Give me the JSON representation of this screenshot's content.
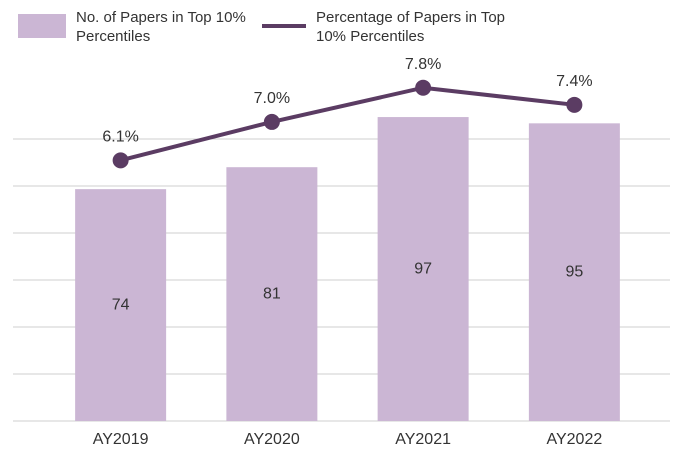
{
  "chart_data": {
    "type": "bar",
    "categories": [
      "AY2019",
      "AY2020",
      "AY2021",
      "AY2022"
    ],
    "series": [
      {
        "name": "No. of Papers in Top 10% Percentiles",
        "type": "bar",
        "color": "#cbb6d4",
        "values": [
          74,
          81,
          97,
          95
        ]
      },
      {
        "name": "Percentage of Papers in Top 10% Percentiles",
        "type": "line",
        "axis": "y2",
        "color": "#5b3c63",
        "values": [
          6.1,
          7.0,
          7.8,
          7.4
        ],
        "value_labels": [
          "6.1%",
          "7.0%",
          "7.8%",
          "7.4%"
        ]
      }
    ],
    "ylim": [
      0,
      105
    ],
    "yticks": [
      0,
      15,
      30,
      45,
      60,
      75,
      90
    ],
    "y2lim": [
      0,
      7.7
    ],
    "grid": true,
    "legend": "top"
  }
}
